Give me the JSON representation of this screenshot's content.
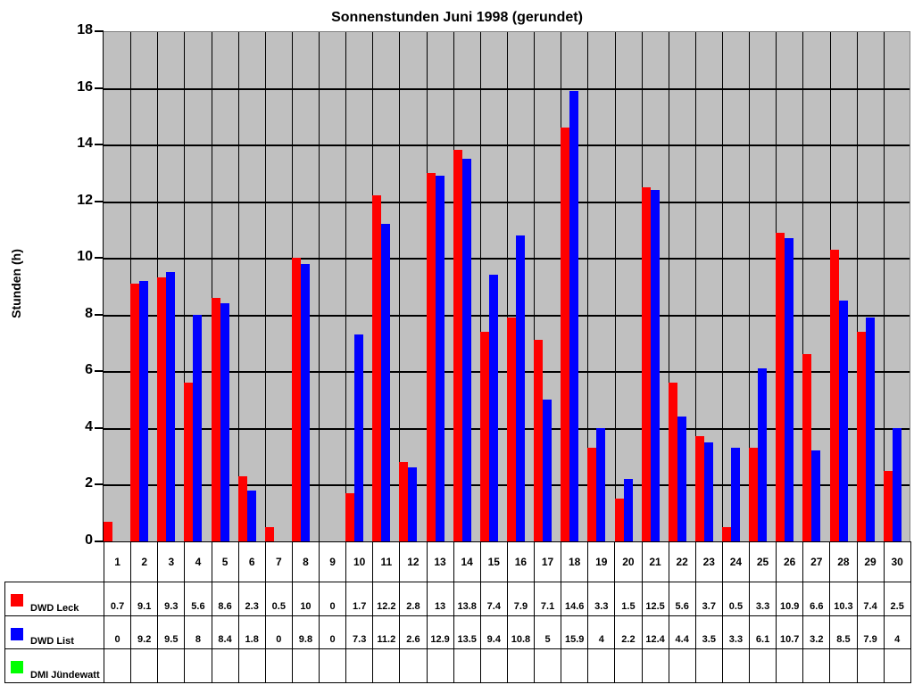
{
  "chart_data": {
    "type": "bar",
    "title": "Sonnenstunden Juni 1998 (gerundet)",
    "xlabel": "",
    "ylabel": "Stunden (h)",
    "ylim": [
      0,
      18
    ],
    "yticks": [
      0,
      2,
      4,
      6,
      8,
      10,
      12,
      14,
      16,
      18
    ],
    "grid": true,
    "legend_position": "data-table",
    "categories": [
      "1",
      "2",
      "3",
      "4",
      "5",
      "6",
      "7",
      "8",
      "9",
      "10",
      "11",
      "12",
      "13",
      "14",
      "15",
      "16",
      "17",
      "18",
      "19",
      "20",
      "21",
      "22",
      "23",
      "24",
      "25",
      "26",
      "27",
      "28",
      "29",
      "30"
    ],
    "series": [
      {
        "name": "DWD Leck",
        "color": "#ff0000",
        "values": [
          "0.7",
          "9.1",
          "9.3",
          "5.6",
          "8.6",
          "2.3",
          "0.5",
          "10",
          "0",
          "1.7",
          "12.2",
          "2.8",
          "13",
          "13.8",
          "7.4",
          "7.9",
          "7.1",
          "14.6",
          "3.3",
          "1.5",
          "12.5",
          "5.6",
          "3.7",
          "0.5",
          "3.3",
          "10.9",
          "6.6",
          "10.3",
          "7.4",
          "2.5"
        ]
      },
      {
        "name": "DWD List",
        "color": "#0000ff",
        "values": [
          "0",
          "9.2",
          "9.5",
          "8",
          "8.4",
          "1.8",
          "0",
          "9.8",
          "0",
          "7.3",
          "11.2",
          "2.6",
          "12.9",
          "13.5",
          "9.4",
          "10.8",
          "5",
          "15.9",
          "4",
          "2.2",
          "12.4",
          "4.4",
          "3.5",
          "3.3",
          "6.1",
          "10.7",
          "3.2",
          "8.5",
          "7.9",
          "4"
        ]
      },
      {
        "name": "DMI Jündewatt",
        "color": "#00ff00",
        "values": [
          "",
          "",
          "",
          "",
          "",
          "",
          "",
          "",
          "",
          "",
          "",
          "",
          "",
          "",
          "",
          "",
          "",
          "",
          "",
          "",
          "",
          "",
          "",
          "",
          "",
          "",
          "",
          "",
          "",
          ""
        ]
      }
    ]
  },
  "colors": {
    "plot_bg": "#c0c0c0",
    "leck": "#ff0000",
    "list": "#0000ff",
    "jundewatt": "#00ff00"
  }
}
